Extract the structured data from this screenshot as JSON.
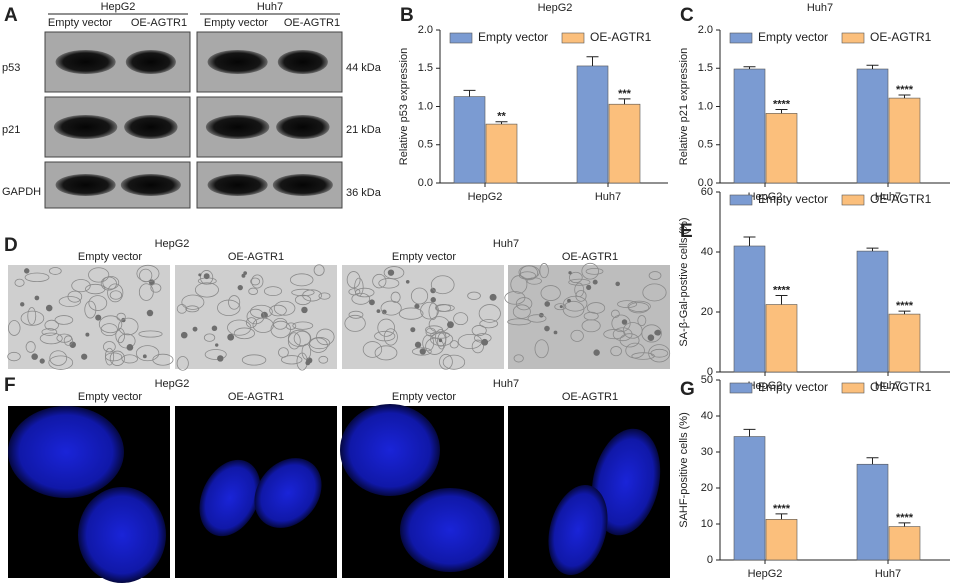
{
  "blot": {
    "label": "A",
    "cell_lines": [
      "HepG2",
      "Huh7"
    ],
    "conditions": [
      "Empty vector",
      "OE-AGTR1",
      "Empty vector",
      "OE-AGTR1"
    ],
    "proteins": [
      "p53",
      "p21",
      "GAPDH"
    ],
    "sizes": [
      "44 kDa",
      "21 kDa",
      "36 kDa"
    ]
  },
  "morphology": {
    "label": "D",
    "cell_lines": [
      "HepG2",
      "Huh7"
    ],
    "conditions": [
      "Empty vector",
      "OE-AGTR1",
      "Empty vector",
      "OE-AGTR1"
    ]
  },
  "nuclei": {
    "label": "F",
    "cell_lines": [
      "HepG2",
      "Huh7"
    ],
    "conditions": [
      "Empty vector",
      "OE-AGTR1",
      "Empty vector",
      "OE-AGTR1"
    ]
  },
  "chart_data": [
    {
      "type": "bar",
      "panel_label": "B",
      "title": "HepG2",
      "y_label": "Relative p53 expression",
      "categories": [
        "HepG2",
        "Huh7"
      ],
      "series": [
        {
          "name": "Empty vector",
          "color": "#7b9bd2",
          "values": [
            1.13,
            1.53
          ],
          "errors": [
            0.08,
            0.12
          ],
          "significance": [
            null,
            null
          ]
        },
        {
          "name": "OE-AGTR1",
          "color": "#fbbf7c",
          "values": [
            0.77,
            1.03
          ],
          "errors": [
            0.03,
            0.07
          ],
          "significance": [
            "**",
            "***"
          ]
        }
      ],
      "ylim": [
        0,
        2
      ],
      "yticks": [
        {
          "value": 0,
          "label": "0.0"
        },
        0.5,
        {
          "value": 1,
          "label": "1.0"
        },
        1.5,
        {
          "value": 2,
          "label": "2.0"
        }
      ]
    },
    {
      "type": "bar",
      "panel_label": "C",
      "title": "Huh7",
      "y_label": "Relative p21 expression",
      "categories": [
        "HepG2",
        "Huh7"
      ],
      "series": [
        {
          "name": "Empty vector",
          "color": "#7b9bd2",
          "values": [
            1.49,
            1.49
          ],
          "errors": [
            0.03,
            0.05
          ],
          "significance": [
            null,
            null
          ]
        },
        {
          "name": "OE-AGTR1",
          "color": "#fbbf7c",
          "values": [
            0.91,
            1.11
          ],
          "errors": [
            0.05,
            0.04
          ],
          "significance": [
            "****",
            "****"
          ]
        }
      ],
      "ylim": [
        0,
        2
      ],
      "yticks": [
        {
          "value": 0,
          "label": "0.0"
        },
        0.5,
        {
          "value": 1,
          "label": "1.0"
        },
        1.5,
        {
          "value": 2,
          "label": "2.0"
        }
      ]
    },
    {
      "type": "bar",
      "panel_label": "E",
      "y_label": "SA-β-Gal-postive cells (%)",
      "categories": [
        "HepG2",
        "Huh7"
      ],
      "series": [
        {
          "name": "Empty vector",
          "color": "#7b9bd2",
          "values": [
            42,
            40.3
          ],
          "errors": [
            3,
            1
          ],
          "significance": [
            null,
            null
          ]
        },
        {
          "name": "OE-AGTR1",
          "color": "#fbbf7c",
          "values": [
            22.5,
            19.3
          ],
          "errors": [
            3,
            1
          ],
          "significance": [
            "****",
            "****"
          ]
        }
      ],
      "ylim": [
        0,
        60
      ],
      "yticks": [
        0,
        20,
        40,
        60
      ]
    },
    {
      "type": "bar",
      "panel_label": "G",
      "y_label": "SAHF-positive cells (%)",
      "categories": [
        "HepG2",
        "Huh7"
      ],
      "series": [
        {
          "name": "Empty vector",
          "color": "#7b9bd2",
          "values": [
            34.3,
            26.6
          ],
          "errors": [
            2,
            1.8
          ],
          "significance": [
            null,
            null
          ]
        },
        {
          "name": "OE-AGTR1",
          "color": "#fbbf7c",
          "values": [
            11.3,
            9.3
          ],
          "errors": [
            1.5,
            1
          ],
          "significance": [
            "****",
            "****"
          ]
        }
      ],
      "ylim": [
        0,
        50
      ],
      "yticks": [
        0,
        10,
        20,
        30,
        40,
        50
      ]
    }
  ]
}
